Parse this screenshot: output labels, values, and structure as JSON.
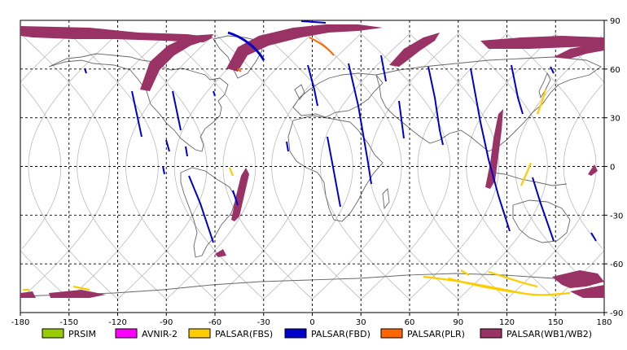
{
  "map": {
    "projection": "equirectangular",
    "lon_range": [
      -180,
      180
    ],
    "lat_range": [
      -90,
      90
    ],
    "lon_ticks": [
      "-180",
      "-150",
      "-120",
      "-90",
      "-60",
      "-30",
      "0",
      "30",
      "60",
      "90",
      "120",
      "150",
      "180"
    ],
    "lat_ticks": [
      "90",
      "60",
      "30",
      "0",
      "-30",
      "-60",
      "-90"
    ],
    "grid": "dashed",
    "background": "#ffffff"
  },
  "legend": {
    "items": [
      {
        "label": "PRSIM",
        "color": "#99cc00"
      },
      {
        "label": "AVNIR-2",
        "color": "#ff00ff"
      },
      {
        "label": "PALSAR(FBS)",
        "color": "#ffcc00"
      },
      {
        "label": "PALSAR(FBD)",
        "color": "#0000cc"
      },
      {
        "label": "PALSAR(PLR)",
        "color": "#ff6600"
      },
      {
        "label": "PALSAR(WB1/WB2)",
        "color": "#993366"
      }
    ]
  },
  "colors": {
    "coast": "#666666",
    "orbit": "#bbbbbb",
    "grid": "#000000",
    "fbs": "#ffcc00",
    "fbd": "#0000cc",
    "plr": "#ff6600",
    "wb": "#993366"
  }
}
